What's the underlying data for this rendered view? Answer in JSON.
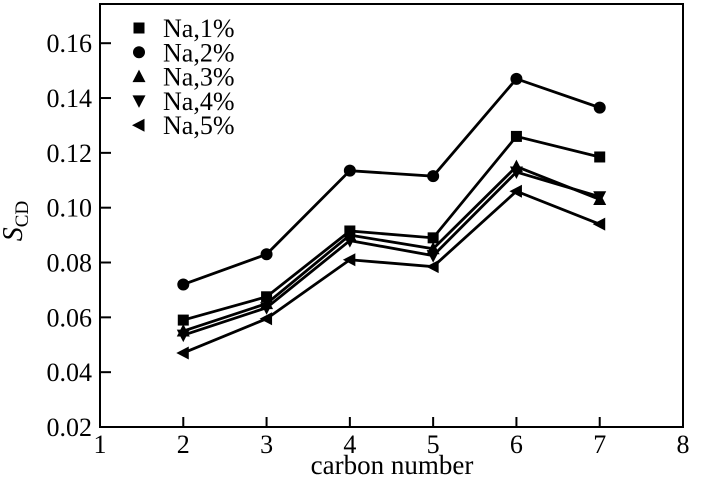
{
  "figure": {
    "background": "#ffffff",
    "ink_color": "#000000"
  },
  "chart_data": {
    "type": "line",
    "title": "",
    "xlabel": "carbon number",
    "ylabel_symbol": "S",
    "ylabel_subscript": "CD",
    "xlim": [
      1,
      8
    ],
    "ylim": [
      0.02,
      0.1743
    ],
    "x_ticks": [
      1,
      2,
      3,
      4,
      5,
      6,
      7,
      8
    ],
    "y_ticks": [
      0.02,
      0.04,
      0.06,
      0.08,
      0.1,
      0.12,
      0.14,
      0.16
    ],
    "grid": false,
    "legend_position": "top-left-inside",
    "x": [
      2,
      3,
      4,
      5,
      6,
      7
    ],
    "series": [
      {
        "name": "Na,1%",
        "marker": "square",
        "values": [
          0.059,
          0.0675,
          0.0915,
          0.089,
          0.126,
          0.1185
        ]
      },
      {
        "name": "Na,2%",
        "marker": "circle",
        "values": [
          0.072,
          0.083,
          0.1135,
          0.1115,
          0.147,
          0.1365
        ]
      },
      {
        "name": "Na,3%",
        "marker": "triangle-up",
        "values": [
          0.055,
          0.065,
          0.09,
          0.085,
          0.115,
          0.103
        ]
      },
      {
        "name": "Na,4%",
        "marker": "triangle-down",
        "values": [
          0.0535,
          0.0635,
          0.088,
          0.0825,
          0.113,
          0.104
        ]
      },
      {
        "name": "Na,5%",
        "marker": "triangle-left",
        "values": [
          0.047,
          0.0595,
          0.081,
          0.0785,
          0.106,
          0.094
        ]
      }
    ]
  }
}
